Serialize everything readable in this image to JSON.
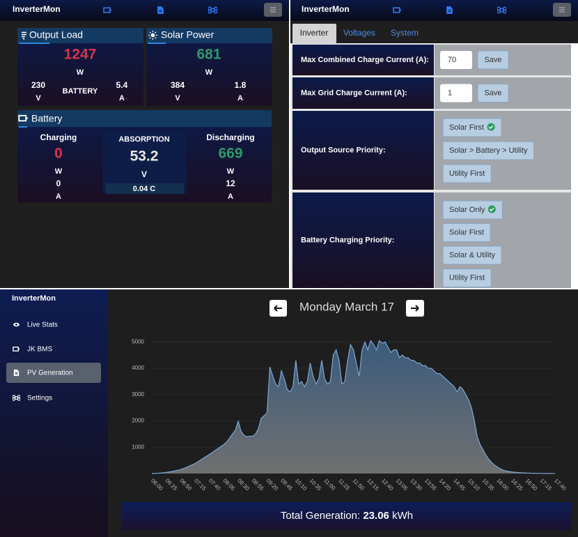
{
  "top_left": {
    "app_title": "InverterMon",
    "output_load": {
      "title": "Output Load",
      "value": "1247",
      "unit": "W",
      "voltage": "230",
      "voltage_unit": "V",
      "center_label": "BATTERY",
      "current": "5.4",
      "current_unit": "A"
    },
    "solar_power": {
      "title": "Solar Power",
      "value": "681",
      "unit": "W",
      "voltage": "384",
      "voltage_unit": "V",
      "current": "1.8",
      "current_unit": "A"
    },
    "battery": {
      "title": "Battery",
      "charging": {
        "label": "Charging",
        "value": "0",
        "unit": "W",
        "current": "0",
        "current_unit": "A"
      },
      "state": "ABSORPTION",
      "voltage": "53.2",
      "voltage_unit": "V",
      "c_rate": "0.04 C",
      "discharging": {
        "label": "Discharging",
        "value": "669",
        "unit": "W",
        "current": "12",
        "current_unit": "A"
      }
    }
  },
  "top_right": {
    "app_title": "InverterMon",
    "tabs": [
      "Inverter",
      "Voltages",
      "System"
    ],
    "settings": [
      {
        "label": "Max Combined Charge Current (A):",
        "input": "70",
        "button": "Save"
      },
      {
        "label": "Max Grid Charge Current (A):",
        "input": "1",
        "button": "Save"
      },
      {
        "label": "Output Source Priority:",
        "options": [
          "Solar First",
          "Solar > Battery > Utility",
          "Utility First"
        ]
      },
      {
        "label": "Battery Charging Priority:",
        "options": [
          "Solar Only",
          "Solar First",
          "Solar & Utility",
          "Utility First"
        ]
      }
    ]
  },
  "bottom": {
    "sidebar": {
      "app_title": "InverterMon",
      "nav": [
        "Live Stats",
        "JK BMS",
        "PV Generation",
        "Settings"
      ]
    },
    "date": "Monday March 17",
    "total": {
      "label": "Total Generation:",
      "value": "23.06",
      "unit": "kWh"
    }
  },
  "chart_data": {
    "type": "area",
    "color": "#7ba7d4",
    "grid": true,
    "ylim": [
      0,
      5300
    ],
    "yticks": [
      1000,
      2000,
      3000,
      4000,
      5000
    ],
    "categories": [
      "06:00",
      null,
      null,
      null,
      null,
      "06:25",
      null,
      null,
      null,
      null,
      "06:50",
      null,
      null,
      null,
      null,
      "07:15",
      null,
      null,
      null,
      null,
      "07:40",
      null,
      null,
      null,
      null,
      "08:05",
      null,
      null,
      null,
      null,
      "08:30",
      null,
      null,
      null,
      null,
      "08:55",
      null,
      null,
      null,
      null,
      "09:20",
      null,
      null,
      null,
      null,
      "09:45",
      null,
      null,
      null,
      null,
      "10:10",
      null,
      null,
      null,
      null,
      "10:35",
      null,
      null,
      null,
      null,
      "11:00",
      null,
      null,
      null,
      null,
      "11:25",
      null,
      null,
      null,
      null,
      "11:50",
      null,
      null,
      null,
      null,
      "12:15",
      null,
      null,
      null,
      null,
      "12:40",
      null,
      null,
      null,
      null,
      "13:05",
      null,
      null,
      null,
      null,
      "13:30",
      null,
      null,
      null,
      null,
      "13:55",
      null,
      null,
      null,
      null,
      "14:20",
      null,
      null,
      null,
      null,
      "14:45",
      null,
      null,
      null,
      null,
      "15:10",
      null,
      null,
      null,
      null,
      "15:35",
      null,
      null,
      null,
      null,
      "16:00",
      null,
      null,
      null,
      null,
      "16:25",
      null,
      null,
      null,
      null,
      "16:50",
      null,
      null,
      null,
      null,
      "17:15",
      null,
      null,
      null,
      null,
      "17:40"
    ],
    "values": [
      0,
      5,
      10,
      20,
      30,
      45,
      60,
      80,
      100,
      125,
      150,
      190,
      230,
      280,
      330,
      380,
      450,
      520,
      590,
      660,
      730,
      800,
      880,
      950,
      1030,
      1100,
      1200,
      1350,
      1500,
      1650,
      1990,
      1600,
      1450,
      1400,
      1420,
      1420,
      1500,
      1700,
      2100,
      2200,
      2300,
      4050,
      3700,
      3400,
      3300,
      3900,
      3600,
      3200,
      3100,
      3300,
      4300,
      3400,
      3500,
      3300,
      3500,
      4200,
      3700,
      3400,
      3600,
      4300,
      3600,
      3400,
      3500,
      4500,
      4700,
      4300,
      3400,
      3500,
      4300,
      4900,
      4700,
      4200,
      3700,
      4700,
      5000,
      4700,
      5050,
      4900,
      4700,
      5050,
      4950,
      5000,
      4800,
      4600,
      4700,
      4700,
      4400,
      4500,
      4400,
      4400,
      4300,
      4300,
      4200,
      4200,
      4100,
      4100,
      4000,
      4000,
      3900,
      3800,
      3800,
      3700,
      3600,
      3500,
      3400,
      3300,
      3100,
      3300,
      3200,
      3000,
      2800,
      2500,
      2000,
      1400,
      1100,
      900,
      700,
      550,
      420,
      320,
      250,
      180,
      130,
      100,
      80,
      60,
      50,
      40,
      30,
      25,
      20,
      15,
      12,
      10,
      8,
      5,
      5,
      4,
      3,
      2,
      0
    ]
  }
}
